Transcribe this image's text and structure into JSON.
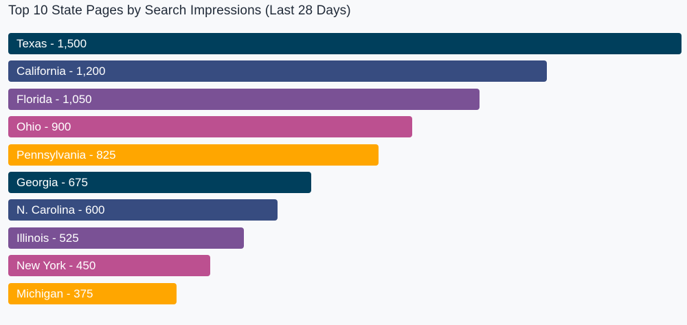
{
  "title": "Top 10 State Pages by Search Impressions (Last 28 Days)",
  "chart_data": {
    "type": "bar",
    "orientation": "horizontal",
    "title": "Top 10 State Pages by Search Impressions (Last 28 Days)",
    "xlabel": "",
    "ylabel": "",
    "grid": false,
    "legend": null,
    "categories": [
      "Texas",
      "California",
      "Florida",
      "Ohio",
      "Pennsylvania",
      "Georgia",
      "N. Carolina",
      "Illinois",
      "New York",
      "Michigan"
    ],
    "values": [
      1500,
      1200,
      1050,
      900,
      825,
      675,
      600,
      525,
      450,
      375
    ],
    "xlim": [
      0,
      1500
    ],
    "colors": [
      "#003f5c",
      "#374c80",
      "#7a5195",
      "#bc5090",
      "#ffa600",
      "#003f5c",
      "#374c80",
      "#7a5195",
      "#bc5090",
      "#ffa600"
    ]
  },
  "bars": [
    {
      "label": "Texas - 1,500",
      "value": 1500,
      "color": "#003f5c"
    },
    {
      "label": "California - 1,200",
      "value": 1200,
      "color": "#374c80"
    },
    {
      "label": "Florida - 1,050",
      "value": 1050,
      "color": "#7a5195"
    },
    {
      "label": "Ohio - 900",
      "value": 900,
      "color": "#bc5090"
    },
    {
      "label": "Pennsylvania - 825",
      "value": 825,
      "color": "#ffa600"
    },
    {
      "label": "Georgia - 675",
      "value": 675,
      "color": "#003f5c"
    },
    {
      "label": "N. Carolina - 600",
      "value": 600,
      "color": "#374c80"
    },
    {
      "label": "Illinois - 525",
      "value": 525,
      "color": "#7a5195"
    },
    {
      "label": "New York - 450",
      "value": 450,
      "color": "#bc5090"
    },
    {
      "label": "Michigan - 375",
      "value": 375,
      "color": "#ffa600"
    }
  ]
}
